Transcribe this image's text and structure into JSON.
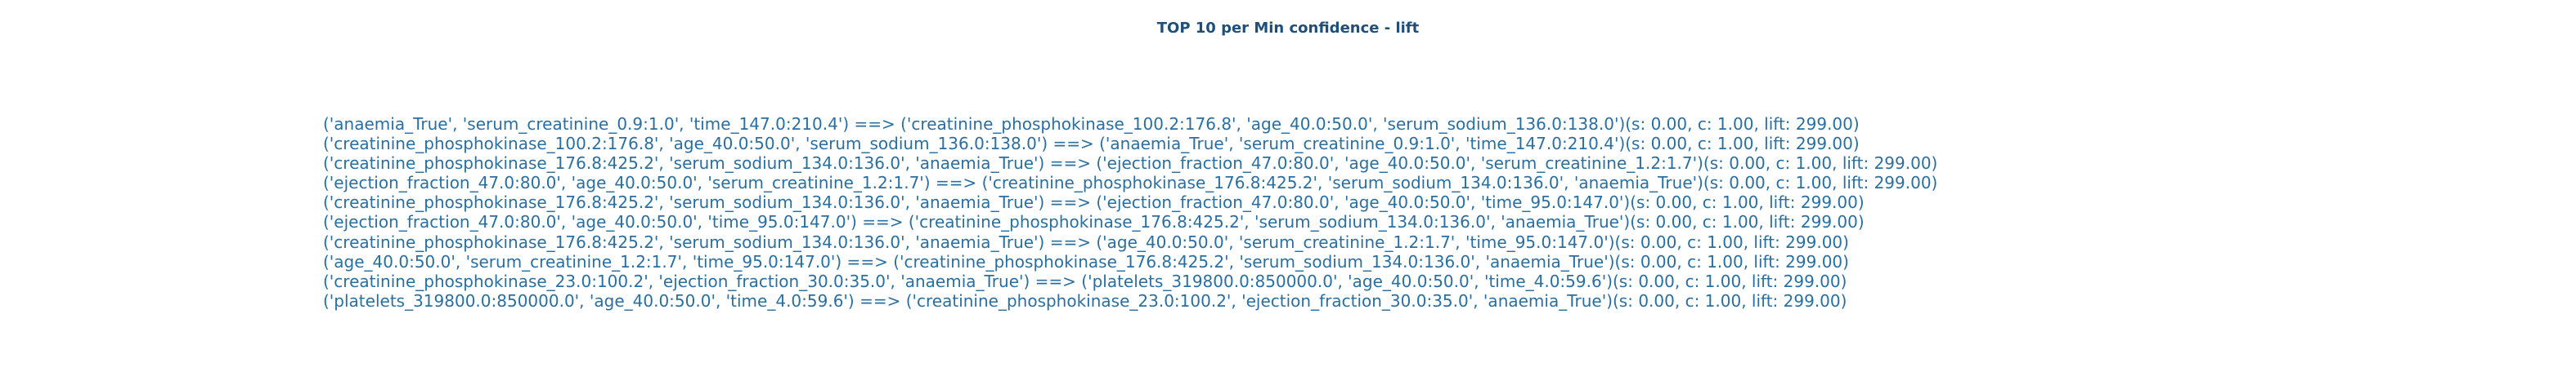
{
  "chart_data": {
    "type": "table",
    "title": "TOP 10 per Min confidence - lift",
    "rules": [
      "('anaemia_True', 'serum_creatinine_0.9:1.0', 'time_147.0:210.4') ==> ('creatinine_phosphokinase_100.2:176.8', 'age_40.0:50.0', 'serum_sodium_136.0:138.0')(s: 0.00, c: 1.00, lift: 299.00)",
      "('creatinine_phosphokinase_100.2:176.8', 'age_40.0:50.0', 'serum_sodium_136.0:138.0') ==> ('anaemia_True', 'serum_creatinine_0.9:1.0', 'time_147.0:210.4')(s: 0.00, c: 1.00, lift: 299.00)",
      "('creatinine_phosphokinase_176.8:425.2', 'serum_sodium_134.0:136.0', 'anaemia_True') ==> ('ejection_fraction_47.0:80.0', 'age_40.0:50.0', 'serum_creatinine_1.2:1.7')(s: 0.00, c: 1.00, lift: 299.00)",
      "('ejection_fraction_47.0:80.0', 'age_40.0:50.0', 'serum_creatinine_1.2:1.7') ==> ('creatinine_phosphokinase_176.8:425.2', 'serum_sodium_134.0:136.0', 'anaemia_True')(s: 0.00, c: 1.00, lift: 299.00)",
      "('creatinine_phosphokinase_176.8:425.2', 'serum_sodium_134.0:136.0', 'anaemia_True') ==> ('ejection_fraction_47.0:80.0', 'age_40.0:50.0', 'time_95.0:147.0')(s: 0.00, c: 1.00, lift: 299.00)",
      "('ejection_fraction_47.0:80.0', 'age_40.0:50.0', 'time_95.0:147.0') ==> ('creatinine_phosphokinase_176.8:425.2', 'serum_sodium_134.0:136.0', 'anaemia_True')(s: 0.00, c: 1.00, lift: 299.00)",
      "('creatinine_phosphokinase_176.8:425.2', 'serum_sodium_134.0:136.0', 'anaemia_True') ==> ('age_40.0:50.0', 'serum_creatinine_1.2:1.7', 'time_95.0:147.0')(s: 0.00, c: 1.00, lift: 299.00)",
      "('age_40.0:50.0', 'serum_creatinine_1.2:1.7', 'time_95.0:147.0') ==> ('creatinine_phosphokinase_176.8:425.2', 'serum_sodium_134.0:136.0', 'anaemia_True')(s: 0.00, c: 1.00, lift: 299.00)",
      "('creatinine_phosphokinase_23.0:100.2', 'ejection_fraction_30.0:35.0', 'anaemia_True') ==> ('platelets_319800.0:850000.0', 'age_40.0:50.0', 'time_4.0:59.6')(s: 0.00, c: 1.00, lift: 299.00)",
      "('platelets_319800.0:850000.0', 'age_40.0:50.0', 'time_4.0:59.6') ==> ('creatinine_phosphokinase_23.0:100.2', 'ejection_fraction_30.0:35.0', 'anaemia_True')(s: 0.00, c: 1.00, lift: 299.00)"
    ],
    "grid": false,
    "axes_visible": false,
    "colors": {
      "title": "#1f4e79",
      "text": "#2a6fa0",
      "background": "#ffffff"
    }
  }
}
